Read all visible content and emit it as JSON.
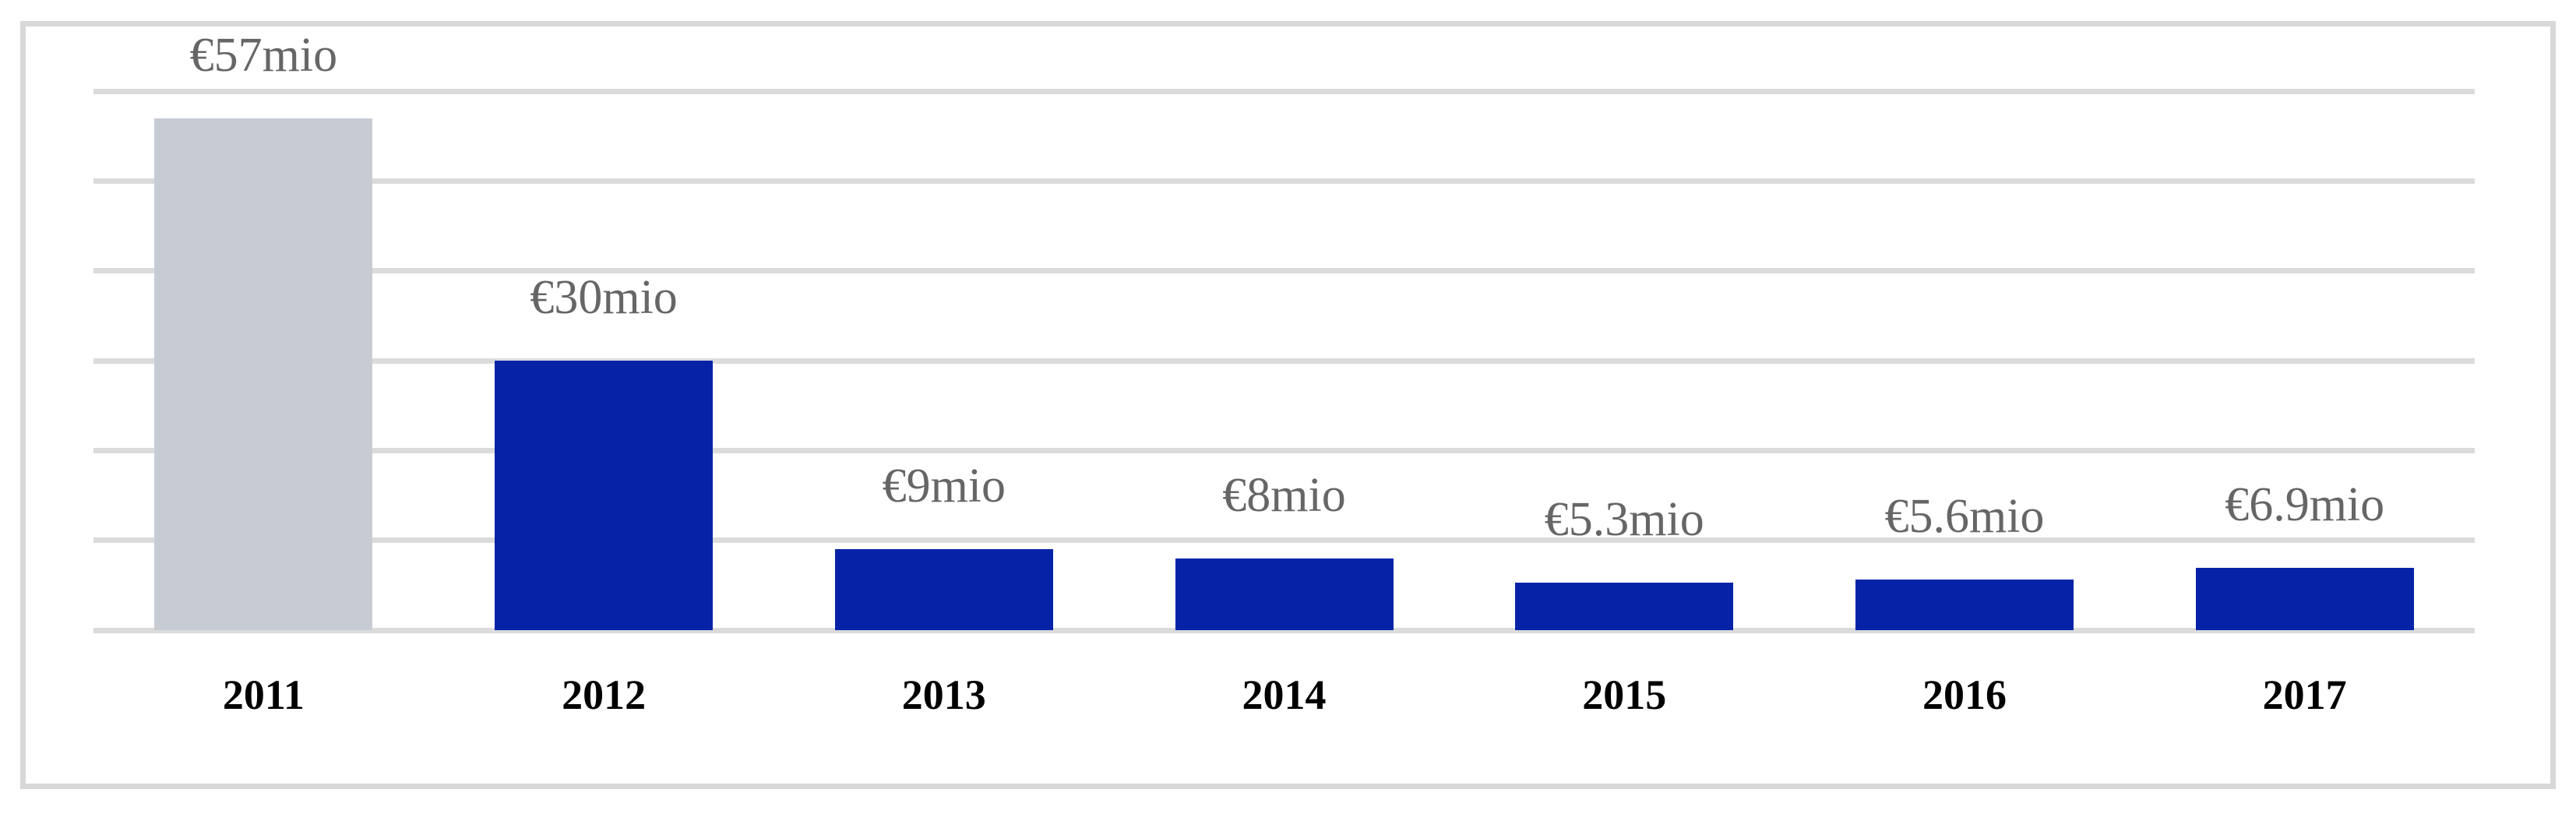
{
  "chart_data": {
    "type": "bar",
    "title": "",
    "xlabel": "",
    "ylabel": "",
    "categories": [
      "2011",
      "2012",
      "2013",
      "2014",
      "2015",
      "2016",
      "2017"
    ],
    "values": [
      57,
      30,
      9,
      8,
      5.3,
      5.6,
      6.9
    ],
    "data_labels": [
      "€57mio",
      "€30mio",
      "€9mio",
      "€8mio",
      "€5.3mio",
      "€5.6mio",
      "€6.9mio"
    ],
    "bar_colors": [
      "#C7CCD4",
      "#0623A8",
      "#0623A8",
      "#0623A8",
      "#0623A8",
      "#0623A8",
      "#0623A8"
    ],
    "ylim": [
      0,
      60
    ],
    "ytick_step": 10,
    "grid": "horizontal-only",
    "legend": "none",
    "y_axis_tick_labels_visible": false,
    "colors": {
      "highlight_gray_bar": "#C7CCD4",
      "primary_blue_bar": "#0623A8",
      "data_label_gray": "#666666",
      "year_label_black": "#000000",
      "gridline": "#DBDBDB",
      "card_border": "#D8D8D8",
      "background": "#FFFFFF"
    }
  }
}
